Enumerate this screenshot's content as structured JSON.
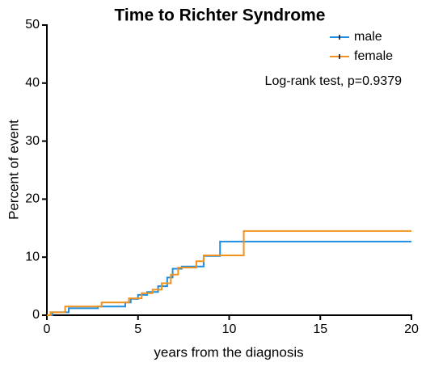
{
  "chart_data": {
    "type": "line",
    "drawstyle": "steps-post",
    "title": "Time to Richter Syndrome",
    "x_label": "years from the diagnosis",
    "y_label": "Percent of event",
    "annotation": "Log-rank test, p=0.9379",
    "xlim": [
      0,
      20
    ],
    "xticks": [
      0,
      5,
      10,
      15,
      20
    ],
    "ylim": [
      0,
      50
    ],
    "yticks": [
      0,
      10,
      20,
      30,
      40,
      50
    ],
    "series": [
      {
        "name": "male",
        "color": "#1f8ee0",
        "x": [
          0,
          0.3,
          1.2,
          2.8,
          4.3,
          4.6,
          5.0,
          5.5,
          6.1,
          6.6,
          6.9,
          7.4,
          8.6,
          9.5,
          20
        ],
        "values": [
          0,
          0.5,
          1.2,
          1.5,
          2.2,
          2.8,
          3.5,
          4.0,
          5.0,
          6.5,
          8.0,
          8.4,
          10.2,
          12.7,
          12.7
        ]
      },
      {
        "name": "female",
        "color": "#f0921e",
        "x": [
          0,
          0.2,
          1.0,
          3.0,
          4.5,
          5.2,
          5.8,
          6.3,
          6.8,
          7.2,
          8.2,
          8.6,
          10.8,
          20
        ],
        "values": [
          0,
          0.5,
          1.5,
          2.2,
          2.9,
          3.8,
          4.4,
          5.5,
          7.0,
          8.2,
          9.3,
          10.3,
          14.5,
          14.5
        ]
      }
    ]
  }
}
